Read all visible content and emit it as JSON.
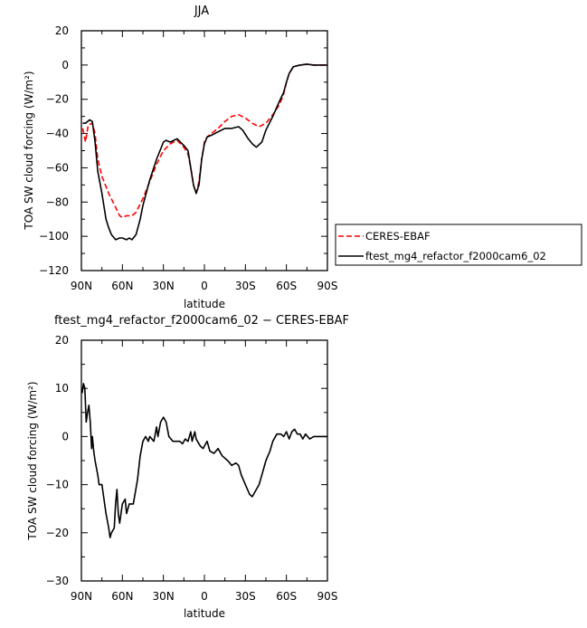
{
  "chart_data": [
    {
      "type": "line",
      "title": "JJA",
      "xlabel": "latitude",
      "ylabel": "TOA SW cloud forcing (W/m²)",
      "ylim": [
        -120,
        20
      ],
      "xlim": [
        90,
        -90
      ],
      "x_tick_labels": [
        "90N",
        "60N",
        "30N",
        "0",
        "30S",
        "60S",
        "90S"
      ],
      "y_ticks": [
        20,
        0,
        -20,
        -40,
        -60,
        -80,
        -100,
        -120
      ],
      "legend": {
        "placement": "right",
        "entries": [
          "CERES-EBAF",
          "ftest_mg4_refactor_f2000cam6_02"
        ]
      },
      "series": [
        {
          "name": "CERES-EBAF",
          "color": "#ff0000",
          "style": "dashed",
          "points": [
            [
              89,
              -37
            ],
            [
              87,
              -45
            ],
            [
              85,
              -35
            ],
            [
              82,
              -34
            ],
            [
              80,
              -40
            ],
            [
              78,
              -55
            ],
            [
              75,
              -65
            ],
            [
              70,
              -75
            ],
            [
              65,
              -83
            ],
            [
              62,
              -88
            ],
            [
              60,
              -89
            ],
            [
              57,
              -88
            ],
            [
              53,
              -88
            ],
            [
              50,
              -86
            ],
            [
              45,
              -78
            ],
            [
              40,
              -68
            ],
            [
              35,
              -58
            ],
            [
              30,
              -50
            ],
            [
              25,
              -46
            ],
            [
              20,
              -44
            ],
            [
              15,
              -48
            ],
            [
              12,
              -52
            ],
            [
              10,
              -60
            ],
            [
              8,
              -70
            ],
            [
              6,
              -75
            ],
            [
              4,
              -68
            ],
            [
              2,
              -55
            ],
            [
              0,
              -45
            ],
            [
              -2,
              -42
            ],
            [
              -5,
              -40
            ],
            [
              -10,
              -37
            ],
            [
              -15,
              -33
            ],
            [
              -20,
              -30
            ],
            [
              -25,
              -29
            ],
            [
              -30,
              -31
            ],
            [
              -35,
              -34
            ],
            [
              -40,
              -36
            ],
            [
              -45,
              -34
            ],
            [
              -50,
              -29
            ],
            [
              -55,
              -23
            ],
            [
              -58,
              -17
            ],
            [
              -60,
              -10
            ],
            [
              -62,
              -5
            ],
            [
              -65,
              -1
            ],
            [
              -70,
              0
            ],
            [
              -75,
              0.5
            ],
            [
              -80,
              0
            ],
            [
              -85,
              0
            ],
            [
              -90,
              0
            ]
          ]
        },
        {
          "name": "ftest_mg4_refactor_f2000cam6_02",
          "color": "#000000",
          "style": "solid",
          "points": [
            [
              89,
              -34
            ],
            [
              87,
              -34
            ],
            [
              84,
              -32
            ],
            [
              82,
              -33
            ],
            [
              80,
              -45
            ],
            [
              78,
              -62
            ],
            [
              75,
              -75
            ],
            [
              72,
              -90
            ],
            [
              70,
              -95
            ],
            [
              68,
              -99
            ],
            [
              65,
              -102
            ],
            [
              62,
              -101
            ],
            [
              60,
              -101
            ],
            [
              57,
              -102
            ],
            [
              55,
              -101
            ],
            [
              53,
              -102
            ],
            [
              50,
              -99
            ],
            [
              47,
              -90
            ],
            [
              45,
              -82
            ],
            [
              40,
              -67
            ],
            [
              35,
              -55
            ],
            [
              30,
              -45
            ],
            [
              28,
              -44
            ],
            [
              25,
              -45
            ],
            [
              20,
              -43
            ],
            [
              15,
              -47
            ],
            [
              12,
              -50
            ],
            [
              10,
              -60
            ],
            [
              8,
              -70
            ],
            [
              6,
              -75
            ],
            [
              4,
              -70
            ],
            [
              2,
              -55
            ],
            [
              0,
              -46
            ],
            [
              -2,
              -42
            ],
            [
              -5,
              -41
            ],
            [
              -10,
              -39
            ],
            [
              -15,
              -37
            ],
            [
              -20,
              -37
            ],
            [
              -25,
              -36
            ],
            [
              -28,
              -38
            ],
            [
              -32,
              -43
            ],
            [
              -35,
              -46
            ],
            [
              -38,
              -48
            ],
            [
              -42,
              -45
            ],
            [
              -45,
              -38
            ],
            [
              -50,
              -30
            ],
            [
              -55,
              -21
            ],
            [
              -58,
              -16
            ],
            [
              -60,
              -10
            ],
            [
              -62,
              -5
            ],
            [
              -65,
              -1
            ],
            [
              -70,
              0
            ],
            [
              -75,
              0.5
            ],
            [
              -80,
              0
            ],
            [
              -85,
              0
            ],
            [
              -90,
              0
            ]
          ]
        }
      ]
    },
    {
      "type": "line",
      "title": "ftest_mg4_refactor_f2000cam6_02 − CERES-EBAF",
      "xlabel": "latitude",
      "ylabel": "TOA SW cloud forcing (W/m²)",
      "ylim": [
        -30,
        20
      ],
      "xlim": [
        90,
        -90
      ],
      "x_tick_labels": [
        "90N",
        "60N",
        "30N",
        "0",
        "30S",
        "60S",
        "90S"
      ],
      "y_ticks": [
        20,
        10,
        0,
        -10,
        -20,
        -30
      ],
      "series": [
        {
          "color": "#000000",
          "style": "solid",
          "points": [
            [
              89.5,
              9
            ],
            [
              88.5,
              11
            ],
            [
              87.5,
              10
            ],
            [
              86.5,
              3
            ],
            [
              85.5,
              5
            ],
            [
              84.5,
              6.5
            ],
            [
              83.5,
              3
            ],
            [
              82.5,
              -2.5
            ],
            [
              82,
              0
            ],
            [
              81,
              -3
            ],
            [
              80,
              -5
            ],
            [
              78,
              -8
            ],
            [
              77,
              -10
            ],
            [
              75,
              -10
            ],
            [
              74,
              -12
            ],
            [
              73,
              -14
            ],
            [
              72,
              -16
            ],
            [
              70,
              -19
            ],
            [
              69,
              -21
            ],
            [
              68,
              -20
            ],
            [
              66,
              -19
            ],
            [
              65,
              -14
            ],
            [
              64,
              -11
            ],
            [
              63,
              -16
            ],
            [
              62,
              -18
            ],
            [
              61,
              -16
            ],
            [
              60,
              -14
            ],
            [
              58,
              -13
            ],
            [
              57,
              -16
            ],
            [
              55,
              -14
            ],
            [
              52,
              -14
            ],
            [
              49,
              -9
            ],
            [
              47,
              -4
            ],
            [
              45,
              -1
            ],
            [
              43,
              0
            ],
            [
              41,
              -1
            ],
            [
              40,
              0
            ],
            [
              37,
              -1
            ],
            [
              35,
              2
            ],
            [
              34,
              0
            ],
            [
              32,
              3
            ],
            [
              30,
              4
            ],
            [
              28,
              3
            ],
            [
              26,
              0
            ],
            [
              23,
              -1
            ],
            [
              20,
              -1
            ],
            [
              18,
              -1
            ],
            [
              16,
              -1.5
            ],
            [
              14,
              -0.5
            ],
            [
              12,
              -1
            ],
            [
              10,
              1
            ],
            [
              9,
              -1
            ],
            [
              7,
              1
            ],
            [
              6,
              -0.5
            ],
            [
              5,
              -1
            ],
            [
              3,
              -2
            ],
            [
              1,
              -2.5
            ],
            [
              0,
              -2
            ],
            [
              -2,
              -1
            ],
            [
              -4,
              -3
            ],
            [
              -7,
              -3.5
            ],
            [
              -10,
              -2.5
            ],
            [
              -13,
              -4
            ],
            [
              -17,
              -5
            ],
            [
              -20,
              -6
            ],
            [
              -23,
              -5.5
            ],
            [
              -25,
              -6
            ],
            [
              -27,
              -8
            ],
            [
              -30,
              -10
            ],
            [
              -33,
              -12
            ],
            [
              -35,
              -12.5
            ],
            [
              -38,
              -11
            ],
            [
              -40,
              -10
            ],
            [
              -42,
              -8
            ],
            [
              -45,
              -5
            ],
            [
              -48,
              -3
            ],
            [
              -50,
              -1
            ],
            [
              -53,
              0.5
            ],
            [
              -56,
              0.5
            ],
            [
              -58,
              0
            ],
            [
              -60,
              1
            ],
            [
              -62,
              -0.5
            ],
            [
              -64,
              1
            ],
            [
              -66,
              1.5
            ],
            [
              -68,
              0.5
            ],
            [
              -70,
              0.5
            ],
            [
              -72,
              -0.5
            ],
            [
              -74,
              0.5
            ],
            [
              -77,
              -0.5
            ],
            [
              -80,
              0
            ],
            [
              -83,
              0
            ],
            [
              -86,
              0
            ],
            [
              -90,
              0
            ]
          ]
        }
      ]
    }
  ]
}
